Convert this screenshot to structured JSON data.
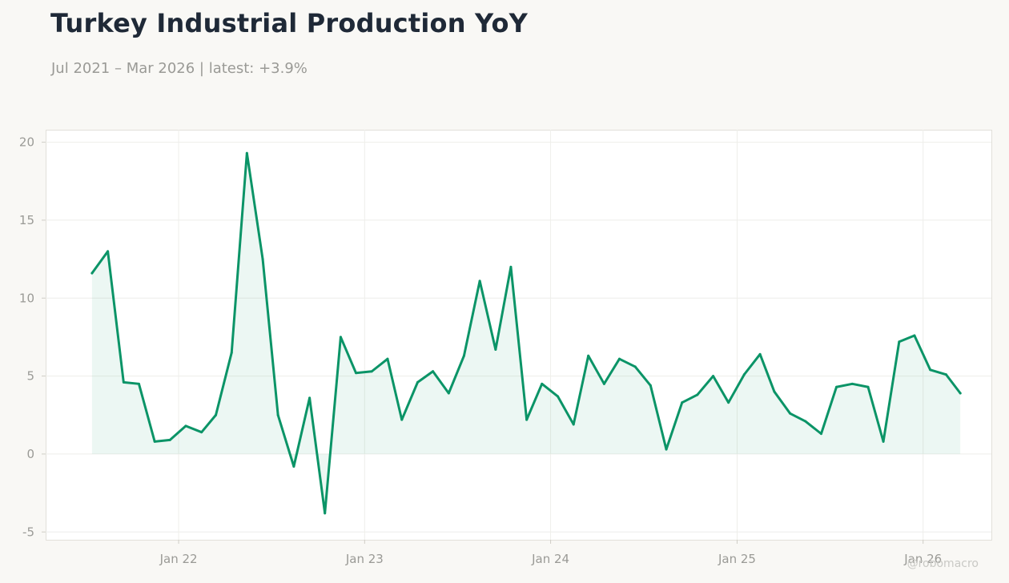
{
  "title": "Turkey Industrial Production YoY",
  "subtitle": "Jul 2021 – Mar 2026 | latest: +3.9%",
  "watermark": "@robomacro",
  "colors": {
    "line": "#0b9467",
    "fill": "#0b9467",
    "background": "#f9f8f5",
    "plot_bg": "#ffffff"
  },
  "chart_data": {
    "type": "area",
    "title": "Turkey Industrial Production YoY",
    "subtitle": "Jul 2021 – Mar 2026 | latest: +3.9%",
    "xlabel": "",
    "ylabel": "",
    "ylim": [
      -5.5,
      20.8
    ],
    "xlim": [
      "2021-04-15",
      "2026-05-15"
    ],
    "grid": true,
    "y_ticks": [
      -5,
      0,
      5,
      10,
      15,
      20
    ],
    "x_ticks": [
      {
        "date": "2022-01-01",
        "label": "Jan 22"
      },
      {
        "date": "2023-01-01",
        "label": "Jan 23"
      },
      {
        "date": "2024-01-01",
        "label": "Jan 24"
      },
      {
        "date": "2025-01-01",
        "label": "Jan 25"
      },
      {
        "date": "2026-01-01",
        "label": "Jan 26"
      }
    ],
    "series": [
      {
        "x": [
          "2021-07",
          "2021-08",
          "2021-09",
          "2021-10",
          "2021-11",
          "2021-12",
          "2022-01",
          "2022-02",
          "2022-03",
          "2022-04",
          "2022-05",
          "2022-06",
          "2022-07",
          "2022-08",
          "2022-09",
          "2022-10",
          "2022-11",
          "2022-12",
          "2023-01",
          "2023-02",
          "2023-03",
          "2023-04",
          "2023-05",
          "2023-06",
          "2023-07",
          "2023-08",
          "2023-09",
          "2023-10",
          "2023-11",
          "2023-12",
          "2024-01",
          "2024-02",
          "2024-03",
          "2024-04",
          "2024-05",
          "2024-06",
          "2024-07",
          "2024-08",
          "2024-09",
          "2024-10",
          "2024-11",
          "2024-12",
          "2025-01",
          "2025-02",
          "2025-03",
          "2025-04",
          "2025-05",
          "2025-06",
          "2025-07",
          "2025-08",
          "2025-09",
          "2025-10",
          "2025-11",
          "2025-12",
          "2026-01",
          "2026-02",
          "2026-03"
        ],
        "values": [
          11.6,
          13.0,
          4.6,
          4.5,
          0.8,
          0.9,
          1.8,
          1.4,
          2.5,
          6.5,
          19.3,
          12.5,
          2.5,
          -0.8,
          3.6,
          -3.8,
          7.5,
          5.2,
          5.3,
          6.1,
          2.2,
          4.6,
          5.3,
          3.9,
          6.3,
          11.1,
          6.7,
          12.0,
          2.2,
          4.5,
          3.7,
          1.9,
          6.3,
          4.5,
          6.1,
          5.6,
          4.4,
          0.3,
          3.3,
          3.8,
          5.0,
          3.3,
          5.1,
          6.4,
          4.0,
          2.6,
          2.1,
          1.3,
          4.3,
          4.5,
          4.3,
          0.8,
          7.2,
          7.6,
          5.4,
          5.1,
          3.9
        ]
      }
    ]
  }
}
